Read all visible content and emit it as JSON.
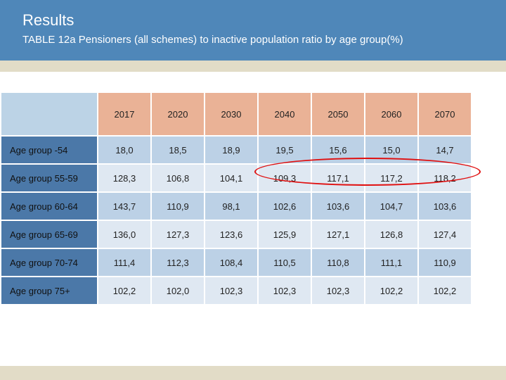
{
  "header": {
    "title": "Results",
    "subtitle": "TABLE 12a  Pensioners (all schemes) to inactive population ratio by age group(%)"
  },
  "table": {
    "years": [
      "2017",
      "2020",
      "2030",
      "2040",
      "2050",
      "2060",
      "2070"
    ],
    "rows": [
      {
        "label": "Age group -54",
        "values": [
          "18,0",
          "18,5",
          "18,9",
          "19,5",
          "15,6",
          "15,0",
          "14,7"
        ]
      },
      {
        "label": "Age group 55-59",
        "values": [
          "128,3",
          "106,8",
          "104,1",
          "109,3",
          "117,1",
          "117,2",
          "118,2"
        ]
      },
      {
        "label": "Age group 60-64",
        "values": [
          "143,7",
          "110,9",
          "98,1",
          "102,6",
          "103,6",
          "104,7",
          "103,6"
        ]
      },
      {
        "label": "Age group 65-69",
        "values": [
          "136,0",
          "127,3",
          "123,6",
          "125,9",
          "127,1",
          "126,8",
          "127,4"
        ]
      },
      {
        "label": "Age group 70-74",
        "values": [
          "111,4",
          "112,3",
          "108,4",
          "110,5",
          "110,8",
          "111,1",
          "110,9"
        ]
      },
      {
        "label": "Age group 75+",
        "values": [
          "102,2",
          "102,0",
          "102,3",
          "102,3",
          "102,3",
          "102,2",
          "102,2"
        ]
      }
    ]
  },
  "colors": {
    "header_bg": "#4f87b9",
    "stripe": "#e2dcc7",
    "year_header_bg": "#eab296",
    "row_label_bg": "#4b78a8",
    "cell_dark": "#bcd1e6",
    "cell_light": "#dfe8f2",
    "highlight_circle": "#e01010"
  }
}
